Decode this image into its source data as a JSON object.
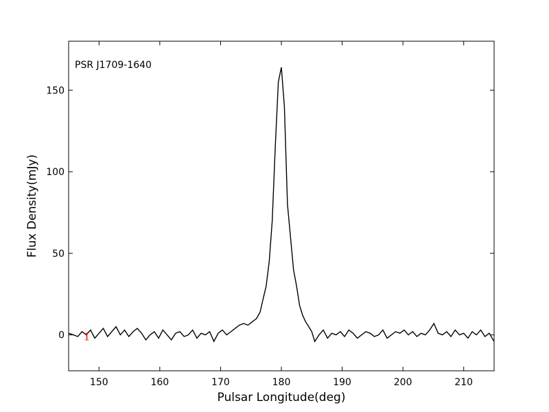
{
  "chart_data": {
    "type": "line",
    "title": "",
    "xlabel": "Pulsar Longitude(deg)",
    "ylabel": "Flux Density(mJy)",
    "annotation": "PSR J1709-1640",
    "xlim": [
      145,
      215
    ],
    "ylim": [
      -22,
      180
    ],
    "xticks": [
      150,
      160,
      170,
      180,
      190,
      200,
      210
    ],
    "yticks": [
      0,
      50,
      100,
      150
    ],
    "grid": false,
    "line_color": "#000000",
    "marker": {
      "text": "1",
      "x": 148,
      "y": 0,
      "color": "#ff0000"
    },
    "series": [
      {
        "x": [
          145,
          145.8,
          146.5,
          147.2,
          147.9,
          148.6,
          149.3,
          150,
          150.7,
          151.4,
          152.1,
          152.8,
          153.5,
          154.2,
          154.9,
          155.6,
          156.3,
          157,
          157.7,
          158.4,
          159.1,
          159.8,
          160.5,
          161.2,
          161.9,
          162.6,
          163.3,
          164,
          164.7,
          165.4,
          166.1,
          166.8,
          167.5,
          168.2,
          168.9,
          169.6,
          170.3,
          171,
          171.7,
          172.4,
          173.1,
          173.8,
          174.5,
          175.2,
          175.9,
          176.5,
          177,
          177.5,
          178,
          178.5,
          179,
          179.5,
          180,
          180.5,
          181,
          181.5,
          182,
          182.5,
          183,
          183.5,
          184,
          184.5,
          185,
          185.5,
          186.2,
          186.9,
          187.6,
          188.3,
          189,
          189.7,
          190.4,
          191.1,
          191.8,
          192.5,
          193.2,
          193.9,
          194.6,
          195.3,
          196,
          196.7,
          197.4,
          198.1,
          198.8,
          199.5,
          200.2,
          200.9,
          201.6,
          202.3,
          203,
          203.7,
          204.4,
          205.1,
          205.8,
          206.5,
          207.2,
          207.9,
          208.6,
          209.3,
          210,
          210.7,
          211.4,
          212.1,
          212.8,
          213.5,
          214.2,
          215
        ],
        "y": [
          1,
          0,
          -1,
          2,
          0,
          3,
          -2,
          1,
          4,
          -1,
          2,
          5,
          0,
          3,
          -1,
          2,
          4,
          1,
          -3,
          0,
          2,
          -2,
          3,
          0,
          -3,
          1,
          2,
          -1,
          0,
          3,
          -2,
          1,
          0,
          2,
          -4,
          1,
          3,
          0,
          2,
          4,
          6,
          7,
          6,
          8,
          10,
          14,
          22,
          30,
          45,
          70,
          115,
          155,
          164,
          140,
          80,
          60,
          40,
          30,
          18,
          12,
          8,
          5,
          2,
          -4,
          0,
          3,
          -2,
          1,
          0,
          2,
          -1,
          3,
          1,
          -2,
          0,
          2,
          1,
          -1,
          0,
          3,
          -2,
          0,
          2,
          1,
          3,
          0,
          2,
          -1,
          1,
          0,
          3,
          7,
          1,
          0,
          2,
          -1,
          3,
          0,
          1,
          -2,
          2,
          0,
          3,
          -1,
          1,
          -4
        ]
      }
    ]
  }
}
